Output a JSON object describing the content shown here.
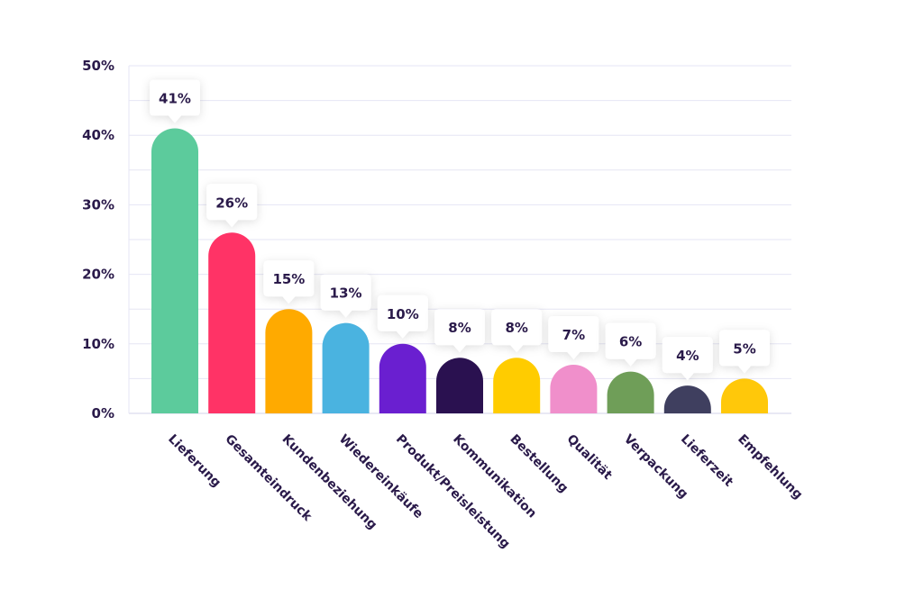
{
  "chart_data": {
    "type": "bar",
    "categories": [
      "Lieferung",
      "Gesamteindruck",
      "Kundenbeziehung",
      "Wiedereinkäufe",
      "Produkt/Preisleistung",
      "Kommunikation",
      "Bestellung",
      "Qualität",
      "Verpackung",
      "Lieferzeit",
      "Empfehlung"
    ],
    "values": [
      41,
      26,
      15,
      13,
      10,
      8,
      8,
      7,
      6,
      4,
      5
    ],
    "data_labels": [
      "41%",
      "26%",
      "15%",
      "13%",
      "10%",
      "8%",
      "8%",
      "7%",
      "6%",
      "4%",
      "5%"
    ],
    "colors": [
      "#5ccb9c",
      "#ff3366",
      "#ffaa00",
      "#4ab3e0",
      "#6a1fd0",
      "#2a1150",
      "#ffcc00",
      "#f08fcb",
      "#6f9e58",
      "#3f3f5f",
      "#ffc80a"
    ],
    "yticks": [
      0,
      10,
      20,
      30,
      40,
      50
    ],
    "ytick_labels": [
      "0%",
      "10%",
      "20%",
      "30%",
      "40%",
      "50%"
    ],
    "ylim": [
      0,
      50
    ],
    "grid": true,
    "legend": "none"
  }
}
